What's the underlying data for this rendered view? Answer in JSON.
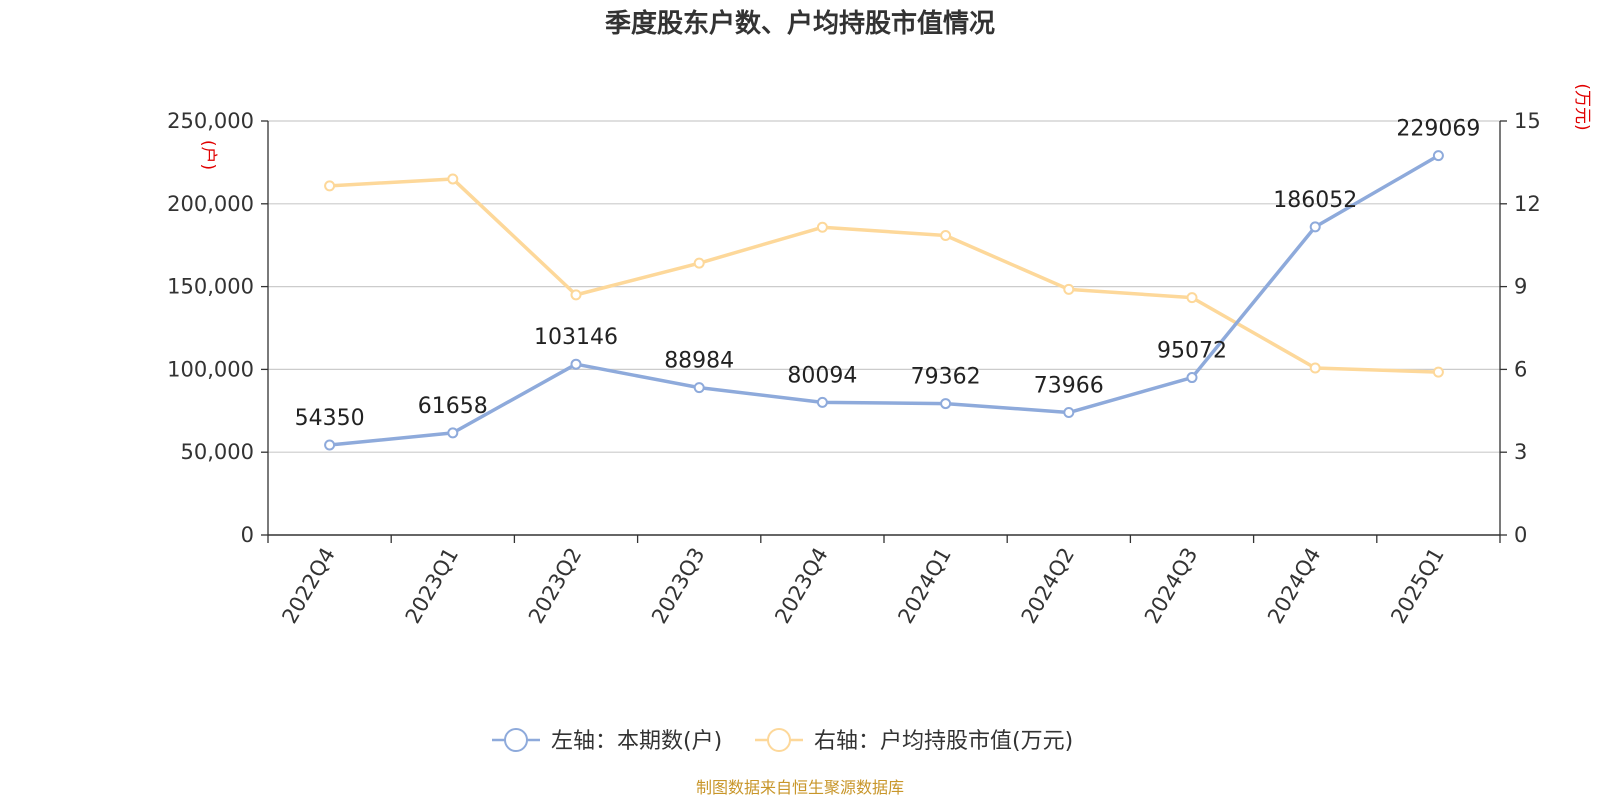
{
  "chart_data": {
    "type": "line",
    "title": "季度股东户数、户均持股市值情况",
    "categories": [
      "2022Q4",
      "2023Q1",
      "2023Q2",
      "2023Q3",
      "2023Q4",
      "2024Q1",
      "2024Q2",
      "2024Q3",
      "2024Q4",
      "2025Q1"
    ],
    "left_axis": {
      "unit": "(户)",
      "range": [
        0,
        250000
      ],
      "ticks": [
        "0",
        "50,000",
        "100,000",
        "150,000",
        "200,000",
        "250,000"
      ]
    },
    "right_axis": {
      "unit": "(万元)",
      "range": [
        0,
        15
      ],
      "ticks": [
        "0",
        "3",
        "6",
        "9",
        "12",
        "15"
      ]
    },
    "grid": true,
    "legend_position": "bottom",
    "series": [
      {
        "name": "左轴：本期数(户)",
        "axis": "left",
        "color": "#8eaadb",
        "values": [
          54350,
          61658,
          103146,
          88984,
          80094,
          79362,
          73966,
          95072,
          186052,
          229069
        ],
        "labels": [
          "54350",
          "61658",
          "103146",
          "88984",
          "80094",
          "79362",
          "73966",
          "95072",
          "186052",
          "229069"
        ]
      },
      {
        "name": "右轴：户均持股市值(万元)",
        "axis": "right",
        "color": "#fdd89a",
        "values": [
          12.65,
          12.9,
          8.7,
          9.85,
          11.15,
          10.85,
          8.9,
          8.6,
          6.05,
          5.9
        ]
      }
    ],
    "source": "制图数据来自恒生聚源数据库"
  }
}
